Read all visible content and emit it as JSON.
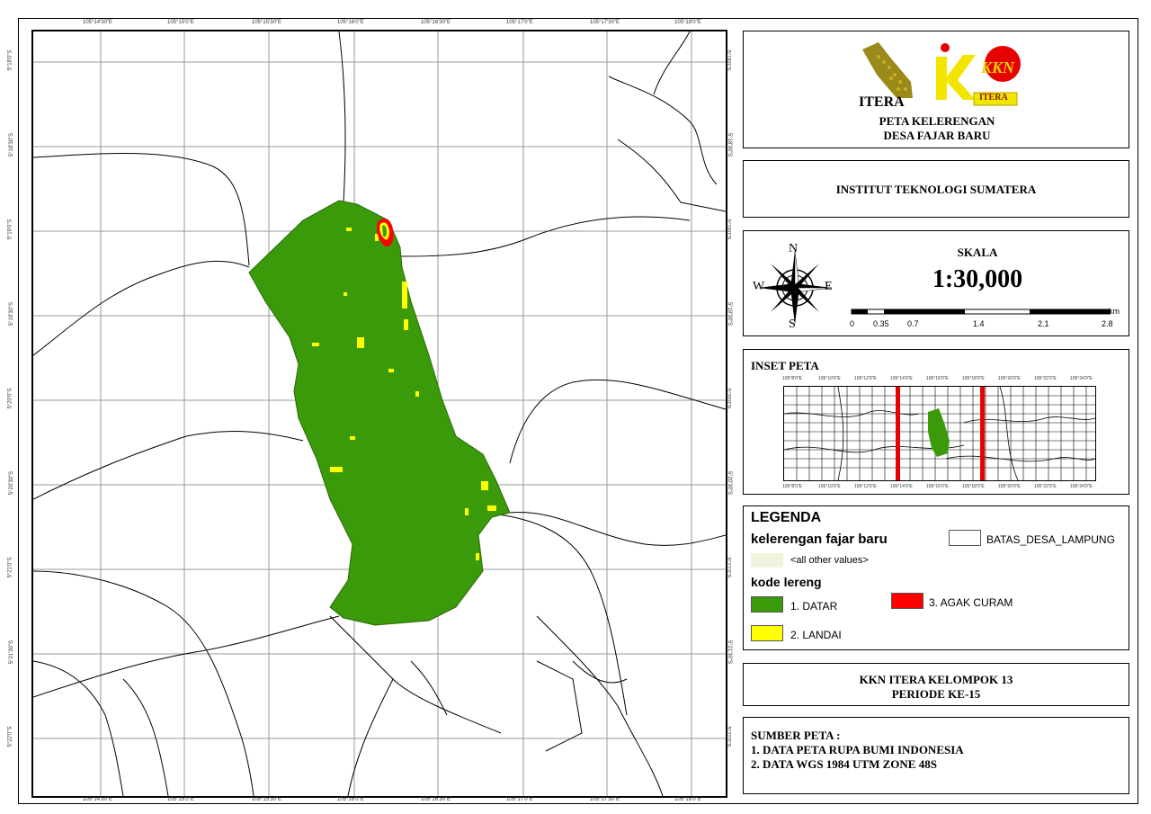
{
  "map": {
    "top_ticks": [
      "105°14'30\"E",
      "105°15'0\"E",
      "105°15'30\"E",
      "105°16'0\"E",
      "105°16'30\"E",
      "105°17'0\"E",
      "105°17'30\"E",
      "105°18'0\"E"
    ],
    "side_ticks": [
      "5°18'0\"S",
      "5°18'30\"S",
      "5°19'0\"S",
      "5°19'30\"S",
      "5°20'0\"S",
      "5°20'30\"S",
      "5°21'0\"S",
      "5°21'30\"S",
      "5°22'0\"S"
    ],
    "colors": {
      "datar": "#3a9a0a",
      "landai": "#ffff00",
      "agak_curam": "#ff0000",
      "boundary": "#000000",
      "grid": "#999999"
    }
  },
  "title_panel": {
    "logo_left_text": "ITERA",
    "logo_right_text": "KKN",
    "logo_right_sub": "ITERA",
    "title_line1": "PETA KELERENGAN",
    "title_line2": "DESA FAJAR BARU"
  },
  "institution": "INSTITUT TEKNOLOGI SUMATERA",
  "scale": {
    "label": "SKALA",
    "ratio": "1:30,000",
    "unit": "km",
    "ticks": [
      "0",
      "0.35",
      "0.7",
      "1.4",
      "2.1",
      "2.8"
    ],
    "compass": {
      "n": "N",
      "s": "S",
      "e": "E",
      "w": "W"
    }
  },
  "inset": {
    "title": "INSET PETA",
    "top_ticks": [
      "105°8'0\"E",
      "105°10'0\"E",
      "105°12'0\"E",
      "105°14'0\"E",
      "105°16'0\"E",
      "105°18'0\"E",
      "105°20'0\"E",
      "105°22'0\"E",
      "105°24'0\"E"
    ],
    "bottom_ticks": [
      "105°8'0\"E",
      "105°10'0\"E",
      "105°12'0\"E",
      "105°14'0\"E",
      "105°16'0\"E",
      "105°18'0\"E",
      "105°20'0\"E",
      "105°22'0\"E",
      "105°24'0\"E"
    ]
  },
  "legend": {
    "title": "LEGENDA",
    "layer1": "kelerengan fajar baru",
    "other": "<all other values>",
    "field": "kode lereng",
    "items": [
      "1. DATAR",
      "2. LANDAI",
      "3. AGAK CURAM"
    ],
    "boundary": "BATAS_DESA_LAMPUNG"
  },
  "group": {
    "line1": "KKN ITERA KELOMPOK 13",
    "line2": "PERIODE KE-15"
  },
  "source": {
    "title": "SUMBER PETA :",
    "line1": "1. DATA PETA RUPA BUMI INDONESIA",
    "line2": "2. DATA WGS 1984 UTM ZONE 48S"
  }
}
